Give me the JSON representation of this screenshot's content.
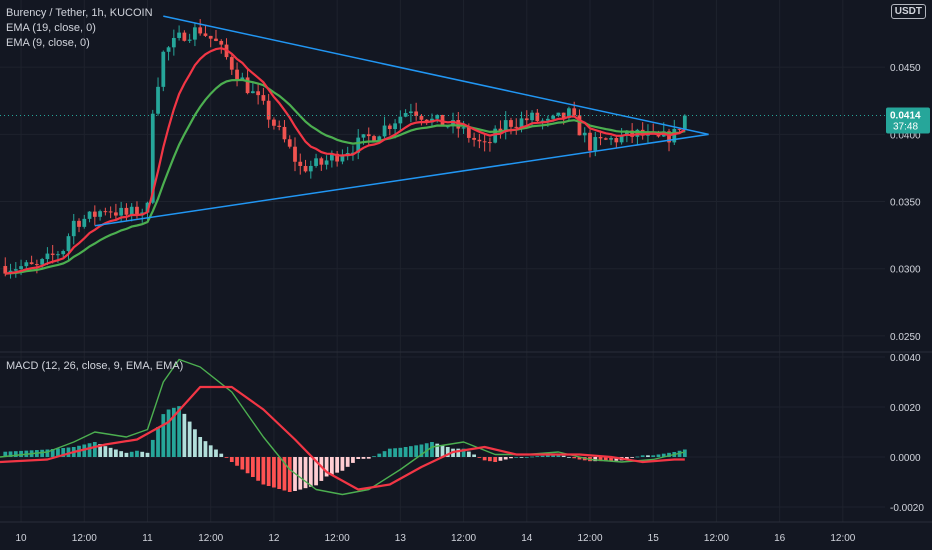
{
  "header": {
    "symbol": "Burency / Tether, 1h, KUCOIN",
    "ema19": "EMA (19, close, 0)",
    "ema9": "EMA (9, close, 0)",
    "currency": "USDT"
  },
  "macd_title": "MACD (12, 26, close, 9, EMA, EMA)",
  "price_badge": {
    "value": "0.0414",
    "countdown": "37:48"
  },
  "colors": {
    "background": "#131722",
    "grid": "#1e222d",
    "up": "#26a69a",
    "down": "#ef5350",
    "ema19": "#4caf50",
    "ema9": "#f23645",
    "trendline": "#2196f3",
    "text": "#d1d4dc",
    "hist_up_strong": "#26a69a",
    "hist_up_weak": "#b2dfdb",
    "hist_down_strong": "#ff5252",
    "hist_down_weak": "#ffcdd2"
  },
  "chart_data": [
    {
      "type": "candlestick",
      "title": "Burency / Tether, 1h, KUCOIN",
      "y_ticks": [
        "0.0250",
        "0.0300",
        "0.0350",
        "0.0400",
        "0.0450"
      ],
      "ylim": [
        0.0238,
        0.05
      ],
      "x_ticks": [
        "10",
        "12:00",
        "11",
        "12:00",
        "12",
        "12:00",
        "13",
        "12:00",
        "14",
        "12:00",
        "15",
        "12:00",
        "16",
        "12:00"
      ],
      "x_tick_times": [
        0,
        12,
        24,
        36,
        48,
        60,
        72,
        84,
        96,
        108,
        120,
        132,
        144,
        156
      ],
      "xlim": [
        -4,
        164
      ],
      "last_price": 0.0414,
      "anchors": [
        [
          -4,
          0.0302
        ],
        [
          3,
          0.0301
        ],
        [
          8,
          0.0315
        ],
        [
          10,
          0.0335
        ],
        [
          13,
          0.0338
        ],
        [
          16,
          0.0345
        ],
        [
          20,
          0.034
        ],
        [
          24,
          0.0345
        ],
        [
          25,
          0.042
        ],
        [
          27,
          0.046
        ],
        [
          31,
          0.0475
        ],
        [
          34,
          0.0478
        ],
        [
          37,
          0.0468
        ],
        [
          42,
          0.044
        ],
        [
          46,
          0.042
        ],
        [
          50,
          0.0395
        ],
        [
          53,
          0.0375
        ],
        [
          57,
          0.0378
        ],
        [
          60,
          0.0385
        ],
        [
          65,
          0.0395
        ],
        [
          70,
          0.0408
        ],
        [
          74,
          0.042
        ],
        [
          78,
          0.041
        ],
        [
          83,
          0.0405
        ],
        [
          88,
          0.039
        ],
        [
          92,
          0.0408
        ],
        [
          97,
          0.0412
        ],
        [
          100,
          0.0408
        ],
        [
          104,
          0.0415
        ],
        [
          108,
          0.0392
        ],
        [
          112,
          0.0396
        ],
        [
          117,
          0.04
        ],
        [
          121,
          0.0396
        ],
        [
          124,
          0.04
        ],
        [
          126,
          0.0414
        ]
      ],
      "series": [
        {
          "name": "EMA (19, close, 0)",
          "color": "#4caf50"
        },
        {
          "name": "EMA (9, close, 0)",
          "color": "#f23645"
        }
      ],
      "trendlines": [
        {
          "from": [
            27,
            0.0488
          ],
          "to": [
            129,
            0.04
          ]
        },
        {
          "from": [
            14,
            0.0332
          ],
          "to": [
            129,
            0.04
          ]
        }
      ]
    },
    {
      "type": "histogram+line",
      "title": "MACD (12, 26, close, 9, EMA, EMA)",
      "y_ticks": [
        "-0.0020",
        "0.0000",
        "0.0020",
        "0.0040"
      ],
      "ylim": [
        -0.0026,
        0.0042
      ],
      "macd": [
        [
          -4,
          0.0
        ],
        [
          5,
          0.0002
        ],
        [
          10,
          0.0006
        ],
        [
          14,
          0.001
        ],
        [
          20,
          0.0008
        ],
        [
          24,
          0.0011
        ],
        [
          27,
          0.003
        ],
        [
          30,
          0.0039
        ],
        [
          34,
          0.0036
        ],
        [
          40,
          0.0026
        ],
        [
          46,
          0.0008
        ],
        [
          51,
          -0.0005
        ],
        [
          56,
          -0.0013
        ],
        [
          61,
          -0.0015
        ],
        [
          66,
          -0.0013
        ],
        [
          72,
          -0.0005
        ],
        [
          78,
          0.0004
        ],
        [
          84,
          0.0006
        ],
        [
          90,
          0.0001
        ],
        [
          96,
          0.0001
        ],
        [
          102,
          0.0002
        ],
        [
          108,
          -0.0001
        ],
        [
          114,
          -0.0002
        ],
        [
          120,
          -0.0001
        ],
        [
          126,
          0.0002
        ]
      ],
      "signal": [
        [
          -4,
          -0.0002
        ],
        [
          5,
          -0.0001
        ],
        [
          10,
          0.0002
        ],
        [
          16,
          0.0005
        ],
        [
          22,
          0.0007
        ],
        [
          28,
          0.0014
        ],
        [
          34,
          0.0028
        ],
        [
          40,
          0.0028
        ],
        [
          46,
          0.0019
        ],
        [
          52,
          0.0007
        ],
        [
          58,
          -0.0006
        ],
        [
          64,
          -0.0013
        ],
        [
          70,
          -0.0011
        ],
        [
          76,
          -0.0004
        ],
        [
          82,
          0.0002
        ],
        [
          88,
          0.0004
        ],
        [
          94,
          0.0001
        ],
        [
          100,
          0.0001
        ],
        [
          106,
          0.0001
        ],
        [
          112,
          0.0
        ],
        [
          118,
          -0.0002
        ],
        [
          124,
          -0.0001
        ],
        [
          126,
          -0.0001
        ]
      ]
    }
  ]
}
